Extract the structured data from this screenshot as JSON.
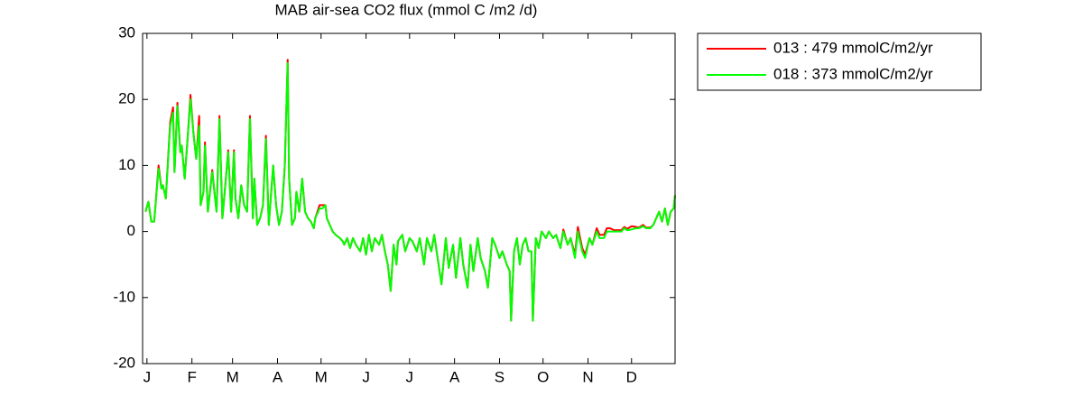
{
  "chart_data": {
    "type": "line",
    "title": "MAB  air-sea CO2 flux (mmol C /m2 /d)",
    "x": [
      0,
      2,
      4,
      6,
      9,
      11,
      12,
      14,
      17,
      19,
      20,
      22,
      24,
      25,
      27,
      29,
      31,
      33,
      35,
      37,
      38,
      40,
      41,
      43,
      46,
      48,
      49,
      51,
      53,
      55,
      57,
      59,
      61,
      62,
      64,
      66,
      68,
      70,
      72,
      74,
      75,
      77,
      79,
      81,
      83,
      85,
      87,
      88,
      90,
      92,
      94,
      96,
      98,
      99,
      101,
      103,
      104,
      106,
      108,
      110,
      112,
      114,
      116,
      117,
      120,
      122,
      124,
      125,
      127,
      129,
      131,
      134,
      136,
      137,
      139,
      141,
      143,
      145,
      148,
      150,
      152,
      154,
      156,
      158,
      161,
      163,
      165,
      167,
      169,
      171,
      173,
      174,
      177,
      179,
      182,
      184,
      187,
      189,
      192,
      194,
      197,
      199,
      202,
      204,
      207,
      209,
      212,
      214,
      217,
      219,
      222,
      224,
      226,
      229,
      231,
      234,
      236,
      239,
      241,
      244,
      246,
      249,
      251,
      252,
      254,
      256,
      258,
      260,
      262,
      264,
      266,
      267,
      269,
      271,
      273,
      276,
      278,
      281,
      283,
      286,
      288,
      291,
      293,
      296,
      298,
      301,
      303,
      306,
      308,
      311,
      313,
      316,
      318,
      320,
      323,
      325,
      328,
      330,
      332,
      335,
      338,
      340,
      343,
      345,
      348,
      350,
      352,
      354,
      356,
      358,
      360,
      362,
      364,
      365
    ],
    "series": [
      {
        "name": "013 : 479 mmolC/m2/yr",
        "color": "#ff0000",
        "values": [
          3,
          4.5,
          1.5,
          1.5,
          10,
          6.5,
          7,
          5,
          16.5,
          18.8,
          9,
          19.5,
          12,
          13,
          8,
          14,
          20.7,
          15,
          11,
          17.5,
          4,
          6,
          13.5,
          3,
          9.3,
          5,
          3,
          17.5,
          2,
          7,
          12.3,
          3,
          12.3,
          5,
          2,
          7,
          4,
          3,
          17.5,
          2,
          8,
          1,
          2,
          4,
          14.5,
          1,
          7,
          10,
          4,
          1,
          3,
          10,
          26,
          8,
          1,
          2,
          6,
          3,
          8,
          3,
          2,
          1.5,
          0.5,
          2,
          4,
          4,
          4,
          2,
          1,
          0,
          -0.5,
          -1,
          -1.5,
          -2,
          -1,
          -2.5,
          -1,
          -2,
          -3,
          -1,
          -3.5,
          -0.5,
          -3,
          -1,
          -2,
          -0.5,
          -3,
          -5,
          -9,
          -2,
          -5,
          -1.5,
          -0.5,
          -3,
          -1,
          -1.5,
          -3,
          -1,
          -5,
          -1,
          -3,
          -0.5,
          -5,
          -8,
          -1,
          -5.5,
          -2,
          -7,
          -1,
          -5,
          -8.5,
          -2,
          -6,
          -1,
          -4,
          -6,
          -8.5,
          -1,
          -2,
          -4,
          -3,
          -5,
          -6,
          -13.5,
          -3,
          -1,
          -5,
          -2,
          -1,
          -3,
          -3,
          -13.5,
          -1,
          -2.5,
          0,
          -1,
          0,
          -1,
          -0.5,
          -2.5,
          0.3,
          -2,
          -1,
          -3.5,
          0.7,
          -2.5,
          -3.5,
          -1,
          -2,
          0.5,
          -0.5,
          -0.5,
          0.5,
          0.5,
          0.2,
          0.2,
          0.2,
          0.7,
          0.4,
          0.8,
          0.7,
          0.6,
          1,
          0.6,
          0.6,
          1,
          2,
          3,
          1.5,
          3.5,
          1,
          3,
          3.5,
          5.5
        ]
      },
      {
        "name": "018 : 373 mmolC/m2/yr",
        "color": "#00ff00",
        "values": [
          3,
          4.5,
          1.5,
          1.5,
          9.5,
          6.5,
          7,
          5,
          16,
          18,
          9,
          19,
          12,
          13,
          8,
          14,
          20,
          15,
          11,
          16,
          4,
          6,
          13,
          3,
          9,
          5,
          3,
          17,
          2,
          7,
          12,
          3,
          12,
          5,
          2,
          7,
          4,
          3,
          17,
          2,
          8,
          1,
          2,
          4,
          14,
          1,
          7,
          10,
          4,
          1,
          3,
          10,
          25.5,
          8,
          1,
          2,
          6,
          3,
          8,
          3,
          2,
          1.5,
          0.5,
          2,
          3.5,
          3.5,
          4,
          2,
          1,
          0,
          -0.5,
          -1,
          -1.5,
          -2,
          -1,
          -2.5,
          -1,
          -2,
          -3,
          -1,
          -3.5,
          -0.5,
          -3,
          -1,
          -2,
          -0.5,
          -3,
          -5,
          -9,
          -2,
          -5,
          -1.5,
          -0.5,
          -3,
          -1,
          -1.5,
          -3,
          -1,
          -5,
          -1,
          -3,
          -0.5,
          -5,
          -8,
          -1,
          -5.5,
          -2,
          -7,
          -1,
          -5,
          -8.5,
          -2,
          -6,
          -1,
          -4,
          -6,
          -8.5,
          -1,
          -2,
          -4,
          -3,
          -5,
          -6,
          -13.5,
          -3,
          -1,
          -5,
          -2,
          -1,
          -3,
          -3,
          -13.5,
          -1,
          -2.5,
          0,
          -1,
          0,
          -1,
          -0.5,
          -2.5,
          0,
          -2,
          -1,
          -4,
          0,
          -3,
          -4,
          -1,
          -2,
          0,
          -1,
          -1,
          0,
          0,
          0,
          0,
          0,
          0.5,
          0.2,
          0.3,
          0.5,
          0.5,
          0.8,
          0.5,
          0.5,
          1,
          2,
          3,
          1.5,
          3.5,
          1,
          3,
          3.5,
          5.5
        ]
      }
    ],
    "xlim": [
      -2,
      365
    ],
    "xticks": [
      {
        "value": 1,
        "label": "J"
      },
      {
        "value": 32,
        "label": "F"
      },
      {
        "value": 60,
        "label": "M"
      },
      {
        "value": 91,
        "label": "A"
      },
      {
        "value": 121,
        "label": "M"
      },
      {
        "value": 152,
        "label": "J"
      },
      {
        "value": 182,
        "label": "J"
      },
      {
        "value": 213,
        "label": "A"
      },
      {
        "value": 244,
        "label": "S"
      },
      {
        "value": 274,
        "label": "O"
      },
      {
        "value": 305,
        "label": "N"
      },
      {
        "value": 335,
        "label": "D"
      }
    ],
    "ylim": [
      -20,
      30
    ],
    "yticks": [
      -20,
      -10,
      0,
      10,
      20,
      30
    ],
    "grid": false,
    "legend": "outside-right"
  }
}
